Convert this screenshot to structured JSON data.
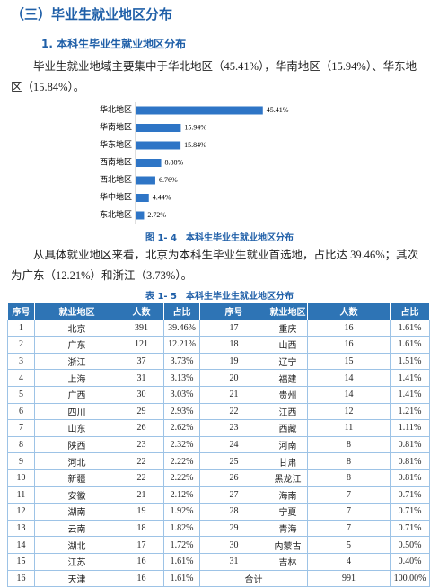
{
  "heading": "（三）毕业生就业地区分布",
  "subheading": "1. 本科生毕业生就业地区分布",
  "paragraph1": "毕业生就业地域主要集中于华北地区（45.41%），华南地区（15.94%）、华东地区（15.84%）。",
  "chart_data": {
    "type": "bar",
    "orientation": "horizontal",
    "categories": [
      "华北地区",
      "华南地区",
      "华东地区",
      "西南地区",
      "西北地区",
      "华中地区",
      "东北地区"
    ],
    "values": [
      45.41,
      15.94,
      15.84,
      8.88,
      6.76,
      4.44,
      2.72
    ],
    "value_labels": [
      "45.41%",
      "15.94%",
      "15.84%",
      "8.88%",
      "6.76%",
      "4.44%",
      "2.72%"
    ],
    "color": "#2e75c6"
  },
  "figure_caption": "图 1- 4　本科生毕业生就业地区分布",
  "paragraph2": "从具体就业地区来看，北京为本科生毕业生就业首选地，占比达 39.46%；其次为广东（12.21%）和浙江（3.73%）。",
  "table": {
    "caption": "表 1- 5　本科生毕业生就业地区分布",
    "header": [
      "序号",
      "就业地区",
      "人数",
      "占比",
      "序号",
      "就业地区",
      "人数",
      "占比"
    ],
    "rows": [
      [
        "1",
        "北京",
        "391",
        "39.46%",
        "17",
        "重庆",
        "16",
        "1.61%"
      ],
      [
        "2",
        "广东",
        "121",
        "12.21%",
        "18",
        "山西",
        "16",
        "1.61%"
      ],
      [
        "3",
        "浙江",
        "37",
        "3.73%",
        "19",
        "辽宁",
        "15",
        "1.51%"
      ],
      [
        "4",
        "上海",
        "31",
        "3.13%",
        "20",
        "福建",
        "14",
        "1.41%"
      ],
      [
        "5",
        "广西",
        "30",
        "3.03%",
        "21",
        "贵州",
        "14",
        "1.41%"
      ],
      [
        "6",
        "四川",
        "29",
        "2.93%",
        "22",
        "江西",
        "12",
        "1.21%"
      ],
      [
        "7",
        "山东",
        "26",
        "2.62%",
        "23",
        "西藏",
        "11",
        "1.11%"
      ],
      [
        "8",
        "陕西",
        "23",
        "2.32%",
        "24",
        "河南",
        "8",
        "0.81%"
      ],
      [
        "9",
        "河北",
        "22",
        "2.22%",
        "25",
        "甘肃",
        "8",
        "0.81%"
      ],
      [
        "10",
        "新疆",
        "22",
        "2.22%",
        "26",
        "黑龙江",
        "8",
        "0.81%"
      ],
      [
        "11",
        "安徽",
        "21",
        "2.12%",
        "27",
        "海南",
        "7",
        "0.71%"
      ],
      [
        "12",
        "湖南",
        "19",
        "1.92%",
        "28",
        "宁夏",
        "7",
        "0.71%"
      ],
      [
        "13",
        "云南",
        "18",
        "1.82%",
        "29",
        "青海",
        "7",
        "0.71%"
      ],
      [
        "14",
        "湖北",
        "17",
        "1.72%",
        "30",
        "内蒙古",
        "5",
        "0.50%"
      ],
      [
        "15",
        "江苏",
        "16",
        "1.61%",
        "31",
        "吉林",
        "4",
        "0.40%"
      ],
      [
        "16",
        "天津",
        "16",
        "1.61%",
        "合计",
        "991",
        "100.00%"
      ]
    ]
  }
}
